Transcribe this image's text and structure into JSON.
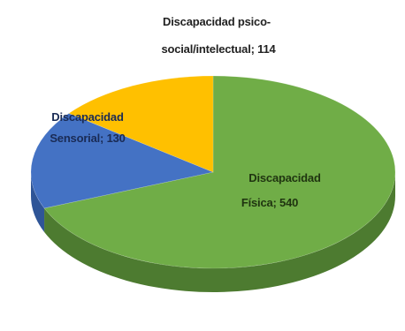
{
  "chart_data": {
    "type": "pie",
    "title": "",
    "slices": [
      {
        "category": "Discapacidad Física",
        "value": 540,
        "color": "#70ad47",
        "side_color": "#4d7b30",
        "text_color": "#1f3410",
        "label_line1": "Discapacidad",
        "label_line2": "Física; 540"
      },
      {
        "category": "Discapacidad Sensorial",
        "value": 130,
        "color": "#4472c4",
        "side_color": "#2f5597",
        "text_color": "#1a2b55",
        "label_line1": "Discapacidad",
        "label_line2": "Sensorial; 130"
      },
      {
        "category": "Discapacidad psico-social/intelectual",
        "value": 114,
        "color": "#ffc000",
        "side_color": "#c69200",
        "text_color": "#222222",
        "label_line1": "Discapacidad psico-",
        "label_line2": "social/intelectual; 114"
      }
    ],
    "legend": "none",
    "style": "3d-pie"
  }
}
